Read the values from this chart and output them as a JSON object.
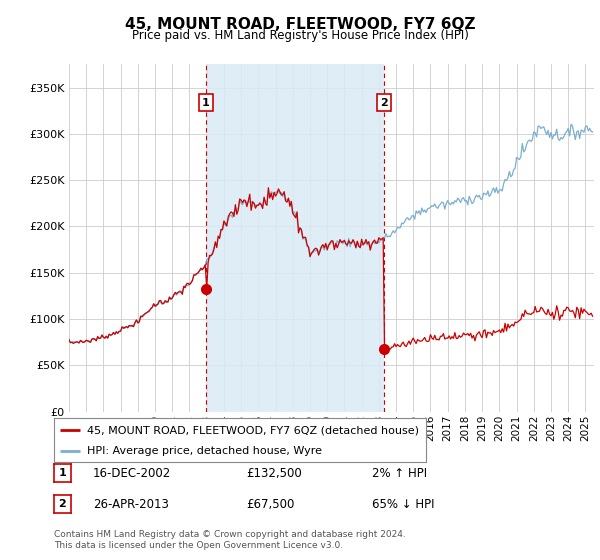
{
  "title": "45, MOUNT ROAD, FLEETWOOD, FY7 6QZ",
  "subtitle": "Price paid vs. HM Land Registry's House Price Index (HPI)",
  "ylabel_ticks": [
    "£0",
    "£50K",
    "£100K",
    "£150K",
    "£200K",
    "£250K",
    "£300K",
    "£350K"
  ],
  "ytick_values": [
    0,
    50000,
    100000,
    150000,
    200000,
    250000,
    300000,
    350000
  ],
  "ylim": [
    0,
    375000
  ],
  "xlim_start": 1995.0,
  "xlim_end": 2025.5,
  "sale1_x": 2002.96,
  "sale1_y": 132500,
  "sale2_x": 2013.32,
  "sale2_y": 67500,
  "sale1_label": "16-DEC-2002",
  "sale1_price": "£132,500",
  "sale1_hpi": "2% ↑ HPI",
  "sale2_label": "26-APR-2013",
  "sale2_price": "£67,500",
  "sale2_hpi": "65% ↓ HPI",
  "legend_line1": "45, MOUNT ROAD, FLEETWOOD, FY7 6QZ (detached house)",
  "legend_line2": "HPI: Average price, detached house, Wyre",
  "footer1": "Contains HM Land Registry data © Crown copyright and database right 2024.",
  "footer2": "This data is licensed under the Open Government Licence v3.0.",
  "red_color": "#cc0000",
  "blue_color": "#7aafcd",
  "shade_color": "#daeaf5",
  "vline_color": "#cc0000",
  "bg_color": "#ffffff",
  "grid_color": "#cccccc"
}
